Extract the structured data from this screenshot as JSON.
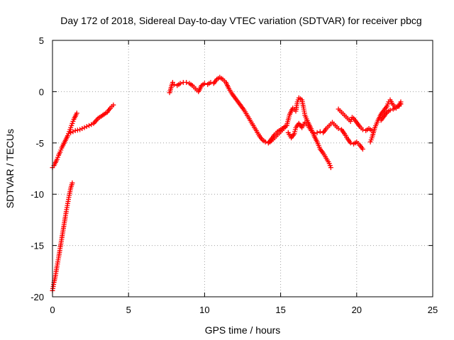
{
  "chart_data": {
    "type": "scatter",
    "title": "Day 172 of 2018, Sidereal Day-to-day VTEC variation (SDTVAR) for receiver pbcg",
    "xlabel": "GPS time / hours",
    "ylabel": "SDTVAR / TECUs",
    "xlim": [
      0,
      25
    ],
    "ylim": [
      -20,
      5
    ],
    "x_ticks": [
      0,
      5,
      10,
      15,
      20,
      25
    ],
    "y_ticks": [
      -20,
      -15,
      -10,
      -5,
      0,
      5
    ],
    "x_tick_labels": [
      "0",
      "5",
      "10",
      "15",
      "20",
      "25"
    ],
    "y_tick_labels": [
      "-20",
      "-15",
      "-10",
      "-5",
      "0",
      "5"
    ],
    "grid": true,
    "marker": "plus",
    "color": "#ff0000",
    "series": [
      {
        "name": "trace-1",
        "points": [
          [
            0.0,
            -7.4
          ],
          [
            0.1,
            -7.2
          ],
          [
            0.2,
            -6.9
          ],
          [
            0.3,
            -6.6
          ],
          [
            0.4,
            -6.2
          ],
          [
            0.5,
            -5.9
          ],
          [
            0.6,
            -5.5
          ],
          [
            0.7,
            -5.2
          ],
          [
            0.8,
            -4.9
          ],
          [
            0.9,
            -4.6
          ],
          [
            1.0,
            -4.3
          ],
          [
            1.1,
            -3.9
          ],
          [
            1.2,
            -3.5
          ],
          [
            1.3,
            -3.1
          ],
          [
            1.4,
            -2.7
          ],
          [
            1.5,
            -2.4
          ],
          [
            1.6,
            -2.1
          ]
        ]
      },
      {
        "name": "trace-2",
        "points": [
          [
            1.2,
            -4.0
          ],
          [
            1.5,
            -3.8
          ],
          [
            1.8,
            -3.7
          ],
          [
            2.1,
            -3.5
          ],
          [
            2.4,
            -3.3
          ],
          [
            2.7,
            -3.1
          ],
          [
            3.0,
            -2.6
          ],
          [
            3.3,
            -2.3
          ],
          [
            3.6,
            -2.0
          ],
          [
            3.8,
            -1.6
          ],
          [
            4.0,
            -1.3
          ]
        ]
      },
      {
        "name": "trace-3",
        "points": [
          [
            0.0,
            -19.4
          ],
          [
            0.1,
            -18.6
          ],
          [
            0.2,
            -17.9
          ],
          [
            0.3,
            -17.0
          ],
          [
            0.4,
            -16.2
          ],
          [
            0.5,
            -15.3
          ],
          [
            0.6,
            -14.4
          ],
          [
            0.7,
            -13.5
          ],
          [
            0.8,
            -12.6
          ],
          [
            0.9,
            -11.7
          ],
          [
            1.0,
            -10.9
          ],
          [
            1.1,
            -10.1
          ],
          [
            1.2,
            -9.4
          ],
          [
            1.3,
            -8.9
          ]
        ]
      },
      {
        "name": "trace-4",
        "points": [
          [
            7.7,
            -0.1
          ],
          [
            7.8,
            0.4
          ],
          [
            7.9,
            0.9
          ],
          [
            8.0,
            0.7
          ],
          [
            8.2,
            0.6
          ],
          [
            8.4,
            0.8
          ],
          [
            8.6,
            0.9
          ],
          [
            8.8,
            0.9
          ],
          [
            9.0,
            0.8
          ],
          [
            9.2,
            0.6
          ],
          [
            9.4,
            0.3
          ],
          [
            9.6,
            0.0
          ],
          [
            9.8,
            0.6
          ],
          [
            10.0,
            0.8
          ],
          [
            10.2,
            0.7
          ],
          [
            10.4,
            0.9
          ],
          [
            10.6,
            0.8
          ],
          [
            10.8,
            1.2
          ],
          [
            11.0,
            1.4
          ],
          [
            11.2,
            1.2
          ],
          [
            11.4,
            0.9
          ],
          [
            11.6,
            0.3
          ],
          [
            11.8,
            -0.2
          ],
          [
            12.0,
            -0.6
          ],
          [
            12.2,
            -1.0
          ],
          [
            12.4,
            -1.4
          ],
          [
            12.6,
            -1.8
          ],
          [
            12.8,
            -2.3
          ],
          [
            13.0,
            -2.8
          ],
          [
            13.2,
            -3.3
          ],
          [
            13.4,
            -3.8
          ],
          [
            13.6,
            -4.3
          ],
          [
            13.8,
            -4.7
          ],
          [
            14.0,
            -4.9
          ],
          [
            14.2,
            -5.0
          ],
          [
            14.4,
            -4.6
          ],
          [
            14.6,
            -4.2
          ],
          [
            14.8,
            -3.9
          ],
          [
            15.0,
            -3.7
          ],
          [
            15.2,
            -3.5
          ],
          [
            15.4,
            -3.3
          ]
        ]
      },
      {
        "name": "trace-5",
        "points": [
          [
            14.2,
            -5.0
          ],
          [
            14.4,
            -4.8
          ],
          [
            14.6,
            -4.5
          ],
          [
            14.8,
            -4.2
          ],
          [
            15.0,
            -3.9
          ],
          [
            15.2,
            -3.6
          ],
          [
            15.4,
            -3.3
          ],
          [
            15.6,
            -2.2
          ],
          [
            15.8,
            -1.6
          ],
          [
            16.0,
            -1.9
          ],
          [
            16.1,
            -1.0
          ],
          [
            16.2,
            -0.6
          ],
          [
            16.4,
            -0.8
          ],
          [
            16.5,
            -1.5
          ],
          [
            16.6,
            -2.3
          ],
          [
            16.8,
            -3.0
          ],
          [
            17.0,
            -3.6
          ],
          [
            17.2,
            -4.3
          ],
          [
            17.4,
            -4.9
          ],
          [
            17.6,
            -5.6
          ],
          [
            17.8,
            -6.0
          ],
          [
            18.0,
            -6.5
          ],
          [
            18.2,
            -7.0
          ],
          [
            18.3,
            -7.4
          ]
        ]
      },
      {
        "name": "trace-6",
        "points": [
          [
            15.5,
            -4.0
          ],
          [
            15.7,
            -4.5
          ],
          [
            15.9,
            -4.1
          ],
          [
            16.0,
            -3.5
          ],
          [
            16.2,
            -3.1
          ],
          [
            16.4,
            -3.5
          ],
          [
            16.6,
            -3.0
          ],
          [
            16.8,
            -3.3
          ],
          [
            17.0,
            -3.8
          ],
          [
            17.2,
            -4.1
          ],
          [
            17.4,
            -4.0
          ],
          [
            17.6,
            -3.9
          ],
          [
            17.8,
            -4.0
          ],
          [
            18.0,
            -3.6
          ],
          [
            18.2,
            -3.3
          ],
          [
            18.4,
            -3.0
          ],
          [
            18.6,
            -3.3
          ],
          [
            18.8,
            -3.6
          ],
          [
            19.0,
            -3.7
          ]
        ]
      },
      {
        "name": "trace-7",
        "points": [
          [
            18.8,
            -1.7
          ],
          [
            19.0,
            -2.0
          ],
          [
            19.2,
            -2.3
          ],
          [
            19.4,
            -2.6
          ],
          [
            19.6,
            -2.9
          ],
          [
            19.7,
            -2.5
          ],
          [
            19.8,
            -2.6
          ],
          [
            20.0,
            -3.0
          ],
          [
            20.2,
            -3.4
          ],
          [
            20.4,
            -3.7
          ],
          [
            20.6,
            -3.8
          ],
          [
            20.8,
            -3.6
          ],
          [
            21.0,
            -3.8
          ]
        ]
      },
      {
        "name": "trace-8",
        "points": [
          [
            19.0,
            -3.7
          ],
          [
            19.2,
            -4.1
          ],
          [
            19.4,
            -4.6
          ],
          [
            19.6,
            -5.0
          ],
          [
            19.8,
            -5.1
          ],
          [
            20.0,
            -4.9
          ],
          [
            20.2,
            -5.2
          ],
          [
            20.4,
            -5.6
          ]
        ]
      },
      {
        "name": "trace-9",
        "points": [
          [
            20.9,
            -4.9
          ],
          [
            21.0,
            -4.5
          ],
          [
            21.2,
            -3.5
          ],
          [
            21.4,
            -2.8
          ],
          [
            21.6,
            -2.2
          ],
          [
            21.8,
            -1.8
          ],
          [
            22.0,
            -1.4
          ],
          [
            22.1,
            -1.0
          ],
          [
            22.2,
            -0.8
          ],
          [
            22.4,
            -1.3
          ],
          [
            22.6,
            -1.6
          ],
          [
            22.8,
            -1.3
          ],
          [
            22.9,
            -1.0
          ]
        ]
      },
      {
        "name": "trace-10",
        "points": [
          [
            21.6,
            -2.8
          ],
          [
            21.8,
            -2.4
          ],
          [
            22.0,
            -2.0
          ],
          [
            22.2,
            -1.8
          ],
          [
            22.4,
            -1.7
          ],
          [
            22.6,
            -1.5
          ],
          [
            22.8,
            -1.4
          ],
          [
            22.9,
            -1.2
          ]
        ]
      }
    ]
  }
}
